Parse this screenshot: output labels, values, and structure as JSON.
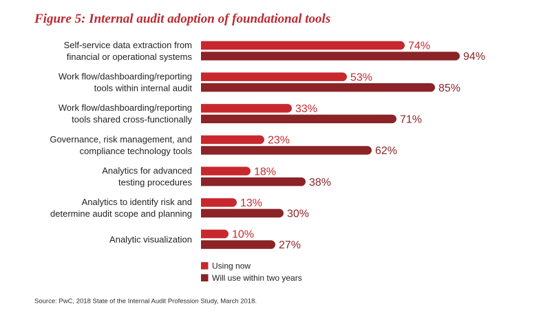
{
  "chart_data": {
    "type": "bar",
    "orientation": "horizontal",
    "title": "Figure 5: Internal audit adoption of foundational tools",
    "categories": [
      [
        "Self-service data extraction from",
        "financial or operational systems"
      ],
      [
        "Work flow/dashboarding/reporting",
        "tools within internal audit"
      ],
      [
        "Work flow/dashboarding/reporting",
        "tools shared cross-functionally"
      ],
      [
        "Governance, risk management, and",
        "compliance technology tools"
      ],
      [
        "Analytics for advanced",
        "testing procedures"
      ],
      [
        "Analytics to identify risk and",
        "determine audit scope and planning"
      ],
      [
        "Analytic visualization"
      ]
    ],
    "series": [
      {
        "name": "Using now",
        "color": "#c8282d",
        "values": [
          74,
          53,
          33,
          23,
          18,
          13,
          10
        ],
        "labels": [
          "74%",
          "53%",
          "33%",
          "23%",
          "18%",
          "13%",
          "10%"
        ]
      },
      {
        "name": "Will use within two years",
        "color": "#8b2327",
        "values": [
          94,
          85,
          71,
          62,
          38,
          30,
          27
        ],
        "labels": [
          "94%",
          "85%",
          "71%",
          "62%",
          "38%",
          "30%",
          "27%"
        ]
      }
    ],
    "xlim": [
      0,
      100
    ],
    "grid": false,
    "legend": "bottom",
    "source": "Source: PwC, 2018 State of the Internal Audit Profession Study, March 2018."
  }
}
